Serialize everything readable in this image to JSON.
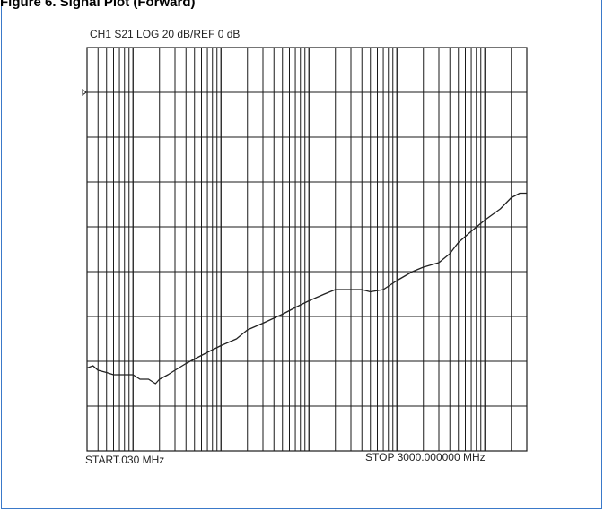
{
  "chart_data": {
    "type": "line",
    "title": "Figure 6. Signal Plot (Forward)",
    "header": "CH1 S21    LOG      20 dB/REF 0 dB",
    "start_label": "START.030 MHz",
    "stop_label": "STOP  3000.000000 MHz",
    "xscale": "log",
    "xlim": [
      0.03,
      3000
    ],
    "ylim": [
      -160,
      20
    ],
    "reference_level_db": 0,
    "grid": true,
    "line_color": "#222222",
    "series": [
      {
        "x": [
          0.03,
          0.035,
          0.04,
          0.05,
          0.06,
          0.08,
          0.1,
          0.12,
          0.15,
          0.18,
          0.2,
          0.25,
          0.3,
          0.4,
          0.5,
          0.7,
          1,
          1.5,
          2,
          3,
          5,
          7,
          10,
          15,
          20,
          30,
          40,
          50,
          70,
          100,
          150,
          200,
          300,
          400,
          500,
          700,
          1000,
          1500,
          2000,
          2500,
          3000
        ],
        "y": [
          -123,
          -122,
          -124,
          -125,
          -126,
          -126,
          -126,
          -128,
          -128,
          -130,
          -128,
          -126,
          -124,
          -121,
          -119,
          -116,
          -113,
          -110,
          -106,
          -103,
          -99,
          -96,
          -93,
          -90,
          -88,
          -88,
          -88,
          -89,
          -88,
          -84,
          -80,
          -78,
          -76,
          -72,
          -67,
          -62,
          -57,
          -52,
          -47,
          -45,
          -45
        ]
      }
    ]
  }
}
